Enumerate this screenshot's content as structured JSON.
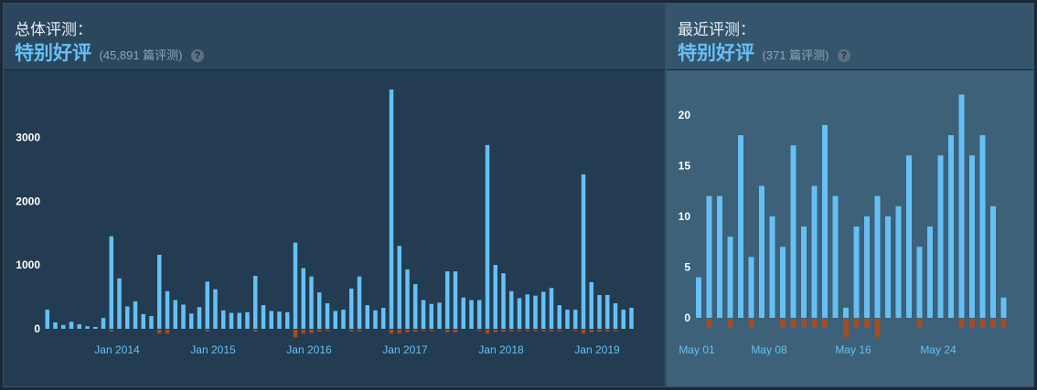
{
  "overall": {
    "title": "总体评测：",
    "summary": "特别好评",
    "count": "(45,891 篇评测)",
    "help_icon": "?",
    "chart_data": {
      "type": "bar",
      "title": "",
      "xlabel": "",
      "ylabel": "",
      "ylim": [
        0,
        3750
      ],
      "yticks": [
        "0",
        "1000",
        "2000",
        "3000"
      ],
      "xtick_labels": [
        "Jan 2014",
        "Jan 2015",
        "Jan 2016",
        "Jan 2017",
        "Jan 2018",
        "Jan 2019"
      ],
      "start": "2013-06",
      "series": [
        {
          "color": "#66c0f4",
          "values": [
            300,
            100,
            60,
            110,
            70,
            40,
            30,
            170,
            1450,
            790,
            350,
            430,
            230,
            200,
            1160,
            590,
            450,
            380,
            240,
            340,
            740,
            620,
            290,
            250,
            250,
            260,
            830,
            370,
            280,
            270,
            260,
            1350,
            950,
            820,
            570,
            400,
            280,
            300,
            630,
            820,
            370,
            290,
            330,
            3750,
            1300,
            930,
            700,
            450,
            390,
            410,
            900,
            900,
            490,
            450,
            450,
            2880,
            1000,
            870,
            590,
            480,
            540,
            520,
            580,
            640,
            370,
            300,
            300,
            2420,
            730,
            530,
            530,
            400,
            300,
            330
          ]
        },
        {
          "color": "#a34c25",
          "values": [
            0,
            0,
            0,
            0,
            0,
            0,
            0,
            0,
            30,
            0,
            0,
            0,
            0,
            0,
            60,
            60,
            0,
            0,
            0,
            0,
            25,
            0,
            0,
            0,
            0,
            0,
            30,
            0,
            0,
            0,
            0,
            120,
            60,
            50,
            30,
            20,
            0,
            0,
            25,
            25,
            0,
            0,
            0,
            60,
            60,
            40,
            30,
            20,
            20,
            0,
            40,
            40,
            0,
            0,
            20,
            60,
            40,
            30,
            25,
            20,
            20,
            20,
            25,
            25,
            20,
            0,
            20,
            60,
            40,
            30,
            25,
            20,
            0,
            0
          ]
        }
      ]
    }
  },
  "recent": {
    "title": "最近评测：",
    "summary": "特别好评",
    "count": "(371 篇评测)",
    "help_icon": "?",
    "chart_data": {
      "type": "bar",
      "title": "",
      "xlabel": "",
      "ylabel": "",
      "ylim": [
        0,
        22
      ],
      "yticks": [
        "0",
        "5",
        "10",
        "15",
        "20"
      ],
      "xtick_labels": [
        "May 01",
        "May 08",
        "May 16",
        "May 24"
      ],
      "start": "May 01",
      "series": [
        {
          "color": "#66c0f4",
          "values": [
            4,
            12,
            12,
            8,
            18,
            6,
            13,
            10,
            7,
            17,
            9,
            13,
            19,
            12,
            1,
            9,
            10,
            12,
            10,
            11,
            16,
            7,
            9,
            16,
            18,
            22,
            16,
            18,
            11,
            2
          ]
        },
        {
          "color": "#a34c25",
          "values": [
            0,
            1,
            0,
            1,
            0,
            1,
            0,
            0,
            1,
            1,
            1,
            1,
            1,
            0,
            2,
            1,
            1,
            2,
            0,
            0,
            0,
            1,
            0,
            0,
            0,
            1,
            1,
            1,
            1,
            1
          ]
        }
      ]
    }
  },
  "colors": {
    "positive": "#66c0f4",
    "negative": "#a34c25",
    "tick_text": "#66c0f4",
    "ylabel_text": "#ffffff"
  }
}
